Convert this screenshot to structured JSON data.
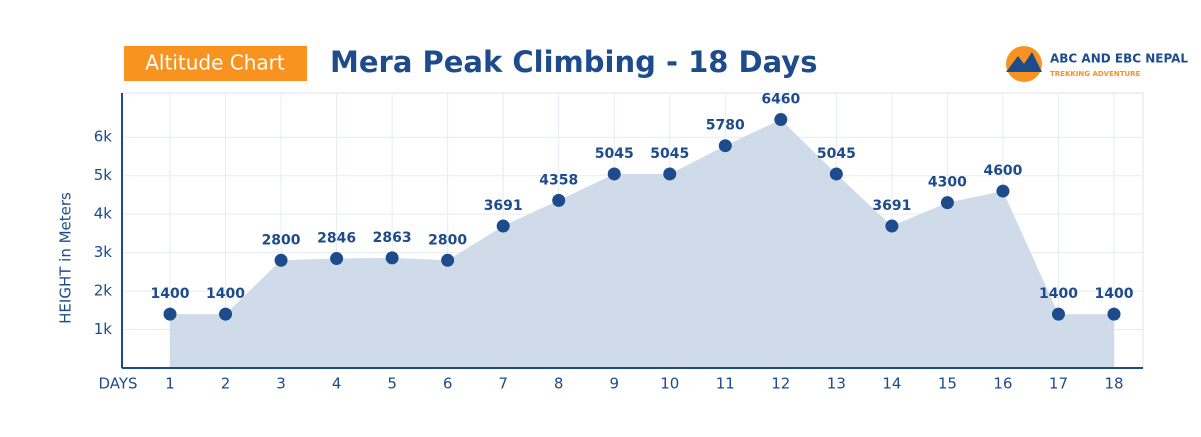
{
  "chart_data": {
    "type": "area",
    "badge": "Altitude Chart",
    "title": "Mera Peak Climbing - 18 Days",
    "brand": "ABC AND EBC NEPAL",
    "brand_tagline": "TREKKING ADVENTURE",
    "y_label": "HEIGHT in Meters",
    "x_label": "DAYS",
    "categories": [
      "1",
      "2",
      "3",
      "4",
      "5",
      "6",
      "7",
      "8",
      "9",
      "10",
      "11",
      "12",
      "13",
      "14",
      "15",
      "16",
      "17",
      "18"
    ],
    "values": [
      1400,
      1400,
      2800,
      2846,
      2863,
      2800,
      3691,
      4358,
      5045,
      5045,
      5780,
      6460,
      5045,
      3691,
      4300,
      4600,
      1400,
      1400
    ],
    "color": "#1e4b8c",
    "fill": "#cfdbe8",
    "ylim": [
      0,
      7150
    ],
    "yticks": [
      {
        "value": 1000,
        "label": "1k"
      },
      {
        "value": 2000,
        "label": "2k"
      },
      {
        "value": 3000,
        "label": "3k"
      },
      {
        "value": 4000,
        "label": "4k"
      },
      {
        "value": 5000,
        "label": "5k"
      },
      {
        "value": 6000,
        "label": "6k"
      }
    ],
    "grid": true
  }
}
